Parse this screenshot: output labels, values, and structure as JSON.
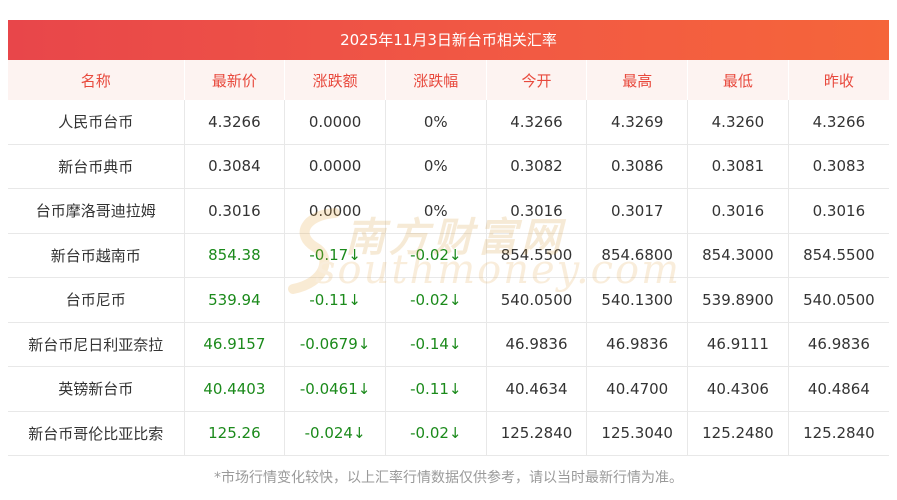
{
  "title": "2025年11月3日新台币相关汇率",
  "headers": [
    "名称",
    "最新价",
    "涨跌额",
    "涨跌幅",
    "今开",
    "最高",
    "最低",
    "昨收"
  ],
  "rows": [
    {
      "name": "人民币台币",
      "latest": "4.3266",
      "change": "0.0000",
      "pct": "0%",
      "open": "4.3266",
      "high": "4.3269",
      "low": "4.3260",
      "prev": "4.3266",
      "dir": "flat"
    },
    {
      "name": "新台币典币",
      "latest": "0.3084",
      "change": "0.0000",
      "pct": "0%",
      "open": "0.3082",
      "high": "0.3086",
      "low": "0.3081",
      "prev": "0.3083",
      "dir": "flat"
    },
    {
      "name": "台币摩洛哥迪拉姆",
      "latest": "0.3016",
      "change": "0.0000",
      "pct": "0%",
      "open": "0.3016",
      "high": "0.3017",
      "low": "0.3016",
      "prev": "0.3016",
      "dir": "flat"
    },
    {
      "name": "新台币越南币",
      "latest": "854.38",
      "change": "-0.17↓",
      "pct": "-0.02↓",
      "open": "854.5500",
      "high": "854.6800",
      "low": "854.3000",
      "prev": "854.5500",
      "dir": "down"
    },
    {
      "name": "台币尼币",
      "latest": "539.94",
      "change": "-0.11↓",
      "pct": "-0.02↓",
      "open": "540.0500",
      "high": "540.1300",
      "low": "539.8900",
      "prev": "540.0500",
      "dir": "down"
    },
    {
      "name": "新台币尼日利亚奈拉",
      "latest": "46.9157",
      "change": "-0.0679↓",
      "pct": "-0.14↓",
      "open": "46.9836",
      "high": "46.9836",
      "low": "46.9111",
      "prev": "46.9836",
      "dir": "down"
    },
    {
      "name": "英镑新台币",
      "latest": "40.4403",
      "change": "-0.0461↓",
      "pct": "-0.11↓",
      "open": "40.4634",
      "high": "40.4700",
      "low": "40.4306",
      "prev": "40.4864",
      "dir": "down"
    },
    {
      "name": "新台币哥伦比亚比索",
      "latest": "125.26",
      "change": "-0.024↓",
      "pct": "-0.02↓",
      "open": "125.2840",
      "high": "125.3040",
      "low": "125.2480",
      "prev": "125.2840",
      "dir": "down"
    }
  ],
  "footnote": "*市场行情变化较快，以上汇率行情数据仅供参考，请以当时最新行情为准。",
  "watermark": {
    "cn": "南方财富网",
    "en": "southmoney.com"
  },
  "colors": {
    "header_text": "#e8493d",
    "title_bg": "#ef4f45",
    "down": "#1b8a1b"
  }
}
